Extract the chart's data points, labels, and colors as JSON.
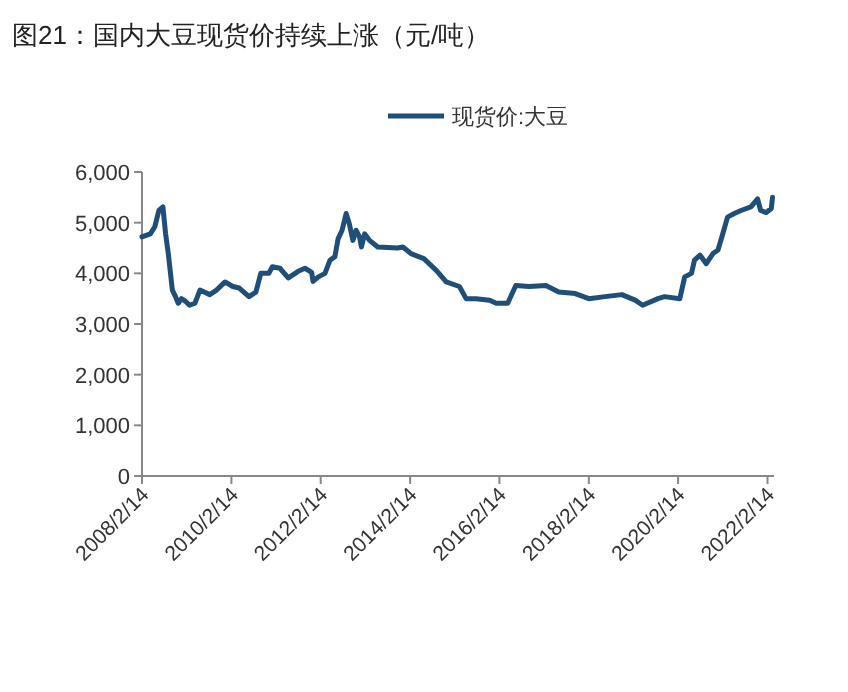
{
  "chart_data": {
    "type": "line",
    "title": "图21：国内大豆现货价持续上涨（元/吨）",
    "legend": "top",
    "grid": false,
    "marker": "none",
    "line_style": "solid",
    "xlim": [
      "2008-02-14",
      "2022-04-08"
    ],
    "ylim": [
      0,
      6000
    ],
    "xticks": [
      {
        "value": "2008-02-14",
        "label": "2008/2/14"
      },
      {
        "value": "2010-02-14",
        "label": "2010/2/14"
      },
      {
        "value": "2012-02-14",
        "label": "2012/2/14"
      },
      {
        "value": "2014-02-14",
        "label": "2014/2/14"
      },
      {
        "value": "2016-02-14",
        "label": "2016/2/14"
      },
      {
        "value": "2018-02-14",
        "label": "2018/2/14"
      },
      {
        "value": "2020-02-14",
        "label": "2020/2/14"
      },
      {
        "value": "2022-02-14",
        "label": "2022/2/14"
      }
    ],
    "yticks": [
      0,
      {
        "value": 1000,
        "label": "1,000"
      },
      {
        "value": 2000,
        "label": "2,000"
      },
      {
        "value": 3000,
        "label": "3,000"
      },
      {
        "value": 4000,
        "label": "4,000"
      },
      {
        "value": 5000,
        "label": "5,000"
      },
      {
        "value": 6000,
        "label": "6,000"
      }
    ],
    "series": [
      {
        "name": "现货价:大豆",
        "color": "#1f4e79",
        "x": [
          "2008-02-14",
          "2008-04-22",
          "2008-05-29",
          "2008-07-01",
          "2008-08-03",
          "2008-08-25",
          "2008-09-16",
          "2008-10-19",
          "2008-11-14",
          "2008-12-06",
          "2009-01-01",
          "2009-02-03",
          "2009-03-09",
          "2009-04-22",
          "2009-06-02",
          "2009-08-21",
          "2009-10-15",
          "2009-12-24",
          "2010-02-25",
          "2010-04-19",
          "2010-07-08",
          "2010-09-02",
          "2010-10-12",
          "2010-12-17",
          "2011-01-15",
          "2011-03-17",
          "2011-05-25",
          "2011-08-14",
          "2011-10-08",
          "2011-12-02",
          "2011-12-13",
          "2012-01-26",
          "2012-03-20",
          "2012-04-30",
          "2012-06-09",
          "2012-07-05",
          "2012-08-07",
          "2012-09-09",
          "2012-10-05",
          "2012-11-03",
          "2012-11-29",
          "2012-12-27",
          "2013-01-12",
          "2013-02-07",
          "2013-03-20",
          "2013-05-25",
          "2013-11-03",
          "2013-12-17",
          "2014-02-21",
          "2014-06-06",
          "2014-09-16",
          "2014-12-06",
          "2015-03-24",
          "2015-05-18",
          "2015-08-07",
          "2015-11-25",
          "2016-01-19",
          "2016-04-22",
          "2016-06-27",
          "2016-10-15",
          "2017-02-28",
          "2017-06-13",
          "2017-10-26",
          "2018-02-14",
          "2018-06-27",
          "2018-11-11",
          "2019-02-28",
          "2019-04-30",
          "2019-09-02",
          "2019-10-26",
          "2020-02-28",
          "2020-04-08",
          "2020-06-02",
          "2020-06-27",
          "2020-08-11",
          "2020-10-01",
          "2020-11-25",
          "2021-01-05",
          "2021-02-11",
          "2021-03-24",
          "2021-05-18",
          "2021-07-12",
          "2021-10-01",
          "2021-11-25",
          "2021-12-20",
          "2022-02-03",
          "2022-03-17",
          "2022-03-27"
        ],
        "values": [
          4720,
          4780,
          4920,
          5240,
          5310,
          4780,
          4390,
          3670,
          3540,
          3410,
          3500,
          3450,
          3370,
          3410,
          3670,
          3580,
          3670,
          3830,
          3740,
          3710,
          3540,
          3630,
          4000,
          4000,
          4130,
          4100,
          3910,
          4040,
          4100,
          4020,
          3840,
          3930,
          4000,
          4260,
          4330,
          4680,
          4850,
          5180,
          4980,
          4650,
          4850,
          4720,
          4520,
          4780,
          4650,
          4520,
          4500,
          4520,
          4390,
          4290,
          4060,
          3830,
          3740,
          3500,
          3500,
          3470,
          3410,
          3410,
          3760,
          3740,
          3760,
          3630,
          3600,
          3500,
          3540,
          3580,
          3470,
          3370,
          3500,
          3540,
          3500,
          3930,
          4000,
          4260,
          4360,
          4190,
          4390,
          4460,
          4760,
          5110,
          5180,
          5240,
          5310,
          5470,
          5240,
          5200,
          5280,
          5500
        ]
      }
    ]
  }
}
